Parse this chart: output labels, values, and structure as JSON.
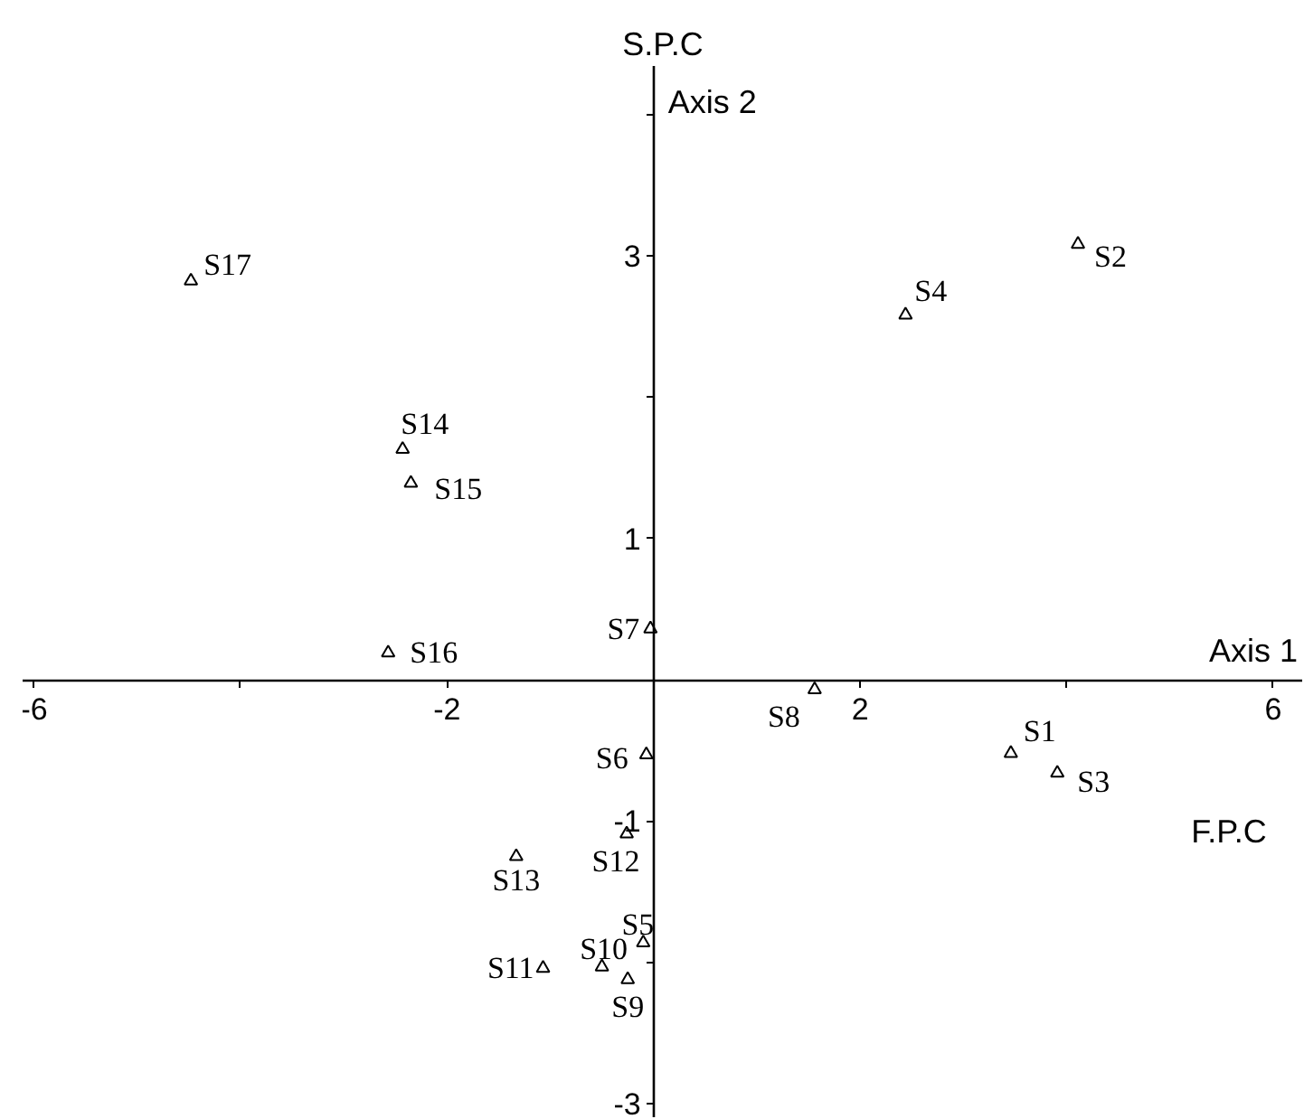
{
  "chart_data": {
    "type": "scatter",
    "xlabel": "F.P.C",
    "ylabel": "S.P.C",
    "x": [
      3.46,
      4.11,
      3.91,
      2.44,
      -0.1,
      -0.07,
      -0.03,
      1.56,
      -0.25,
      -0.5,
      -1.07,
      -0.26,
      -1.33,
      -2.43,
      -2.35,
      -2.57,
      -4.48
    ],
    "values": [
      -0.52,
      3.08,
      -0.66,
      2.58,
      -1.86,
      -0.53,
      0.36,
      -0.07,
      -2.12,
      -2.03,
      -2.04,
      -1.09,
      -1.25,
      1.63,
      1.39,
      0.19,
      2.82
    ],
    "color": "#000000",
    "marker": "triangle",
    "grid": false,
    "xlim": [
      -6.11,
      6.29
    ],
    "ylim": [
      -3.1,
      4.34
    ],
    "xticks": [
      -6,
      {
        "value": -4,
        "label": null
      },
      -2,
      2,
      {
        "value": 4,
        "label": null
      },
      6
    ],
    "yticks": [
      -3,
      {
        "value": -2,
        "label": null
      },
      -1,
      1,
      {
        "value": 2,
        "label": null
      },
      3,
      {
        "value": 4,
        "label": null
      }
    ],
    "annotations": [
      {
        "text": "S1",
        "x": 3.46,
        "y": -0.52
      },
      {
        "text": "S2",
        "x": 4.11,
        "y": 3.08
      },
      {
        "text": "S3",
        "x": 3.91,
        "y": -0.66
      },
      {
        "text": "S4",
        "x": 2.44,
        "y": 2.58
      },
      {
        "text": "S5",
        "x": -0.1,
        "y": -1.86
      },
      {
        "text": "S6",
        "x": -0.07,
        "y": -0.53
      },
      {
        "text": "S7",
        "x": -0.03,
        "y": 0.36
      },
      {
        "text": "S8",
        "x": 1.56,
        "y": -0.07
      },
      {
        "text": "S9",
        "x": -0.25,
        "y": -2.12
      },
      {
        "text": "S10",
        "x": -0.5,
        "y": -2.03
      },
      {
        "text": "S11",
        "x": -1.07,
        "y": -2.04
      },
      {
        "text": "S12",
        "x": -0.26,
        "y": -1.09
      },
      {
        "text": "S13",
        "x": -1.33,
        "y": -1.25
      },
      {
        "text": "S14",
        "x": -2.43,
        "y": 1.63
      },
      {
        "text": "S15",
        "x": -2.35,
        "y": 1.39
      },
      {
        "text": "S16",
        "x": -2.57,
        "y": 0.19
      },
      {
        "text": "S17",
        "x": -4.48,
        "y": 2.82
      },
      "Axis 1",
      "Axis 2"
    ]
  }
}
